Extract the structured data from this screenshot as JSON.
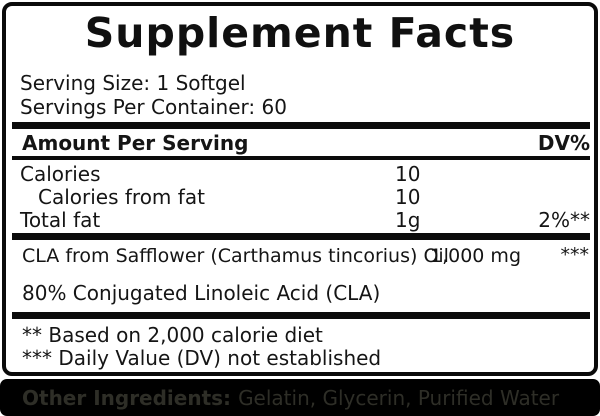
{
  "label": {
    "title": "Supplement Facts",
    "serving_size": "Serving Size: 1 Softgel",
    "servings_per_container": "Servings Per Container: 60",
    "header": {
      "amount_per_serving": "Amount Per Serving",
      "dv": "DV%"
    },
    "rows": [
      {
        "name": "Calories",
        "amount": "10",
        "dv": ""
      },
      {
        "name": "Calories from fat",
        "amount": "10",
        "dv": ""
      },
      {
        "name": "Total fat",
        "amount": "1g",
        "dv": "2%**"
      }
    ],
    "ingredient_row": {
      "name": "CLA from Safflower (Carthamus tincorius) Oil",
      "amount": "1,000 mg",
      "dv": "***"
    },
    "description": "80% Conjugated Linoleic Acid (CLA)",
    "footnotes": [
      "** Based on 2,000 calorie diet",
      "*** Daily Value (DV) not established"
    ]
  },
  "other_ingredients": {
    "label": "Other Ingredients:",
    "value": "Gelatin, Glycerin, Purified Water"
  },
  "colors": {
    "border": "#0a0a0a",
    "rule": "#0b0b0b",
    "band_background": "#000000",
    "band_text": "#2e2e27",
    "text": "#151515"
  }
}
